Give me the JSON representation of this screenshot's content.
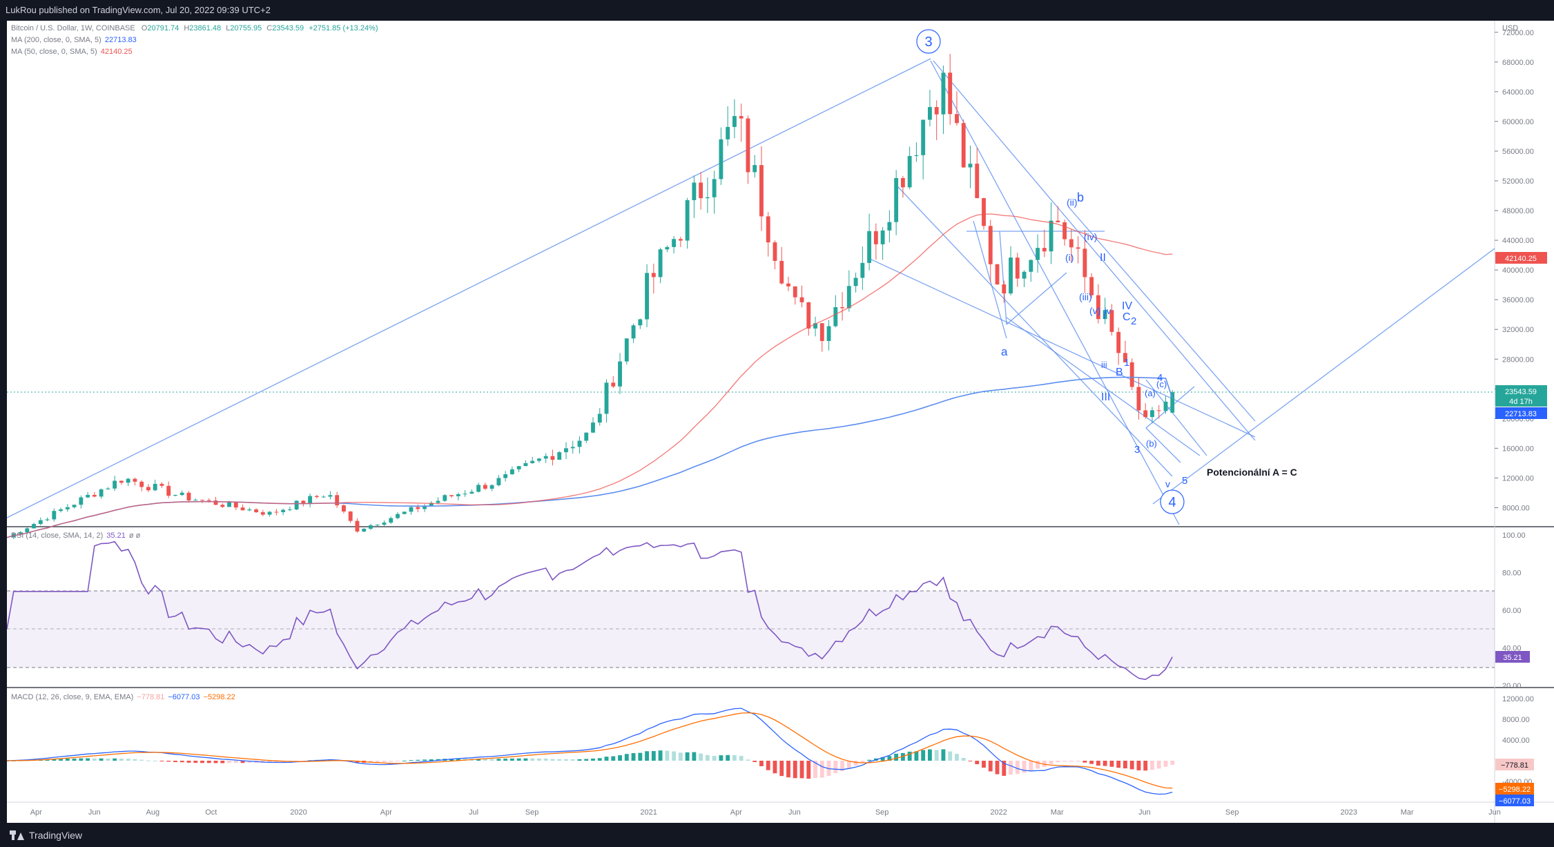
{
  "header": {
    "published": "LukRou published on TradingView.com, Jul 20, 2022 09:39 UTC+2"
  },
  "footer": {
    "logo_text": "TradingView"
  },
  "colors": {
    "up": "#26a69a",
    "down": "#ef5350",
    "ma200": "#5b8def",
    "ma50": "#ef5350",
    "rsi": "#7e57c2",
    "macd": "#2962ff",
    "signal": "#ff6d00",
    "drawing": "#5b8def"
  },
  "legend": {
    "main": "Bitcoin / U.S. Dollar, 1W, COINBASE",
    "ohlc": {
      "o_lbl": "O",
      "o": "20791.74",
      "h_lbl": "H",
      "h": "23861.48",
      "l_lbl": "L",
      "l": "20755.95",
      "c_lbl": "C",
      "c": "23543.59",
      "chg": "+2751.85 (+13.24%)"
    },
    "ma200": "MA (200, close, 0, SMA, 5)",
    "ma200_val": "22713.83",
    "ma50": "MA (50, close, 0, SMA, 5)",
    "ma50_val": "42140.25",
    "rsi": "RSI (14, close, SMA, 14, 2)",
    "rsi_val": "35.21",
    "rsi_extra": "ø ø",
    "macd": "MACD (12, 26, close, 9, EMA, EMA)",
    "macd_h": "−778.81",
    "macd_m": "−6077.03",
    "macd_s": "−5298.22"
  },
  "price_axis": {
    "currency": "USD",
    "ticks": [
      "72000.00",
      "68000.00",
      "64000.00",
      "60000.00",
      "56000.00",
      "52000.00",
      "48000.00",
      "44000.00",
      "40000.00",
      "36000.00",
      "32000.00",
      "28000.00",
      "24000.00",
      "20000.00",
      "16000.00",
      "12000.00",
      "8000.00"
    ],
    "badges": {
      "ma50": "42140.25",
      "price": "23543.59",
      "countdown": "4d 17h",
      "ma200": "22713.83"
    }
  },
  "rsi_axis": {
    "ticks": [
      "100.00",
      "80.00",
      "60.00",
      "40.00",
      "20.00"
    ],
    "badge": "35.21"
  },
  "macd_axis": {
    "ticks": [
      "12000.00",
      "8000.00",
      "4000.00",
      "-4000.00"
    ],
    "badges": [
      "−778.81",
      "−5298.22",
      "−6077.03"
    ]
  },
  "time_axis": [
    "Apr",
    "Jun",
    "Aug",
    "Oct",
    "2020",
    "Apr",
    "Jul",
    "Sep",
    "2021",
    "Apr",
    "Jun",
    "Sep",
    "2022",
    "Mar",
    "Jun",
    "Sep",
    "2023",
    "Mar",
    "Jun"
  ],
  "annotations": {
    "wave3": "3",
    "wave4": "4",
    "a": "a",
    "b": "b",
    "ii": "(ii)",
    "iv": "(iv)",
    "i": "(i)",
    "iii": "(iii)",
    "v": "(v)",
    "II": "II",
    "IV": "IV",
    "C": "C",
    "two": "2",
    "small_i": "i",
    "small_iv": "iv",
    "small_iii": "iii",
    "one": "1",
    "B": "B",
    "III": "III",
    "four": "4",
    "a_p": "(a)",
    "c_p": "(c)",
    "b_p": "(b)",
    "three": "3",
    "five": "5",
    "small_v": "v",
    "note": "Potencionální A = C"
  },
  "chart_data": [
    {
      "type": "candlestick",
      "title": "Bitcoin / U.S. Dollar, 1W, COINBASE",
      "timeframe": "1W",
      "x_range": [
        "2019-03",
        "2023-06"
      ],
      "y_range": [
        6000,
        73000
      ],
      "last": {
        "open": 20791.74,
        "high": 23861.48,
        "low": 20755.95,
        "close": 23543.59
      },
      "series": [
        {
          "name": "MA (200, close, 0, SMA, 5)",
          "last": 22713.83
        },
        {
          "name": "MA (50, close, 0, SMA, 5)",
          "last": 42140.25
        }
      ],
      "anchor_prices": [
        {
          "date": "2019-03",
          "price": 4000
        },
        {
          "date": "2019-06",
          "price": 10000
        },
        {
          "date": "2019-07",
          "price": 12000
        },
        {
          "date": "2019-09",
          "price": 9500
        },
        {
          "date": "2019-12",
          "price": 7200
        },
        {
          "date": "2020-02",
          "price": 10000
        },
        {
          "date": "2020-03",
          "price": 5000
        },
        {
          "date": "2020-06",
          "price": 9300
        },
        {
          "date": "2020-08",
          "price": 11800
        },
        {
          "date": "2020-11",
          "price": 18000
        },
        {
          "date": "2021-01",
          "price": 38000
        },
        {
          "date": "2021-04",
          "price": 60000
        },
        {
          "date": "2021-06",
          "price": 35000
        },
        {
          "date": "2021-07",
          "price": 32000
        },
        {
          "date": "2021-09",
          "price": 47000
        },
        {
          "date": "2021-11",
          "price": 66000
        },
        {
          "date": "2022-01",
          "price": 38000
        },
        {
          "date": "2022-03",
          "price": 47000
        },
        {
          "date": "2022-05",
          "price": 30000
        },
        {
          "date": "2022-06",
          "price": 19000
        },
        {
          "date": "2022-07",
          "price": 23543.59
        }
      ]
    },
    {
      "type": "line",
      "title": "RSI (14, close, SMA, 14, 2)",
      "y_range": [
        20,
        100
      ],
      "bands": [
        30,
        50,
        70
      ],
      "last": 35.21
    },
    {
      "type": "bar",
      "title": "MACD (12, 26, close, 9, EMA, EMA)",
      "histogram_last": -778.81,
      "macd_last": -6077.03,
      "signal_last": -5298.22
    }
  ]
}
